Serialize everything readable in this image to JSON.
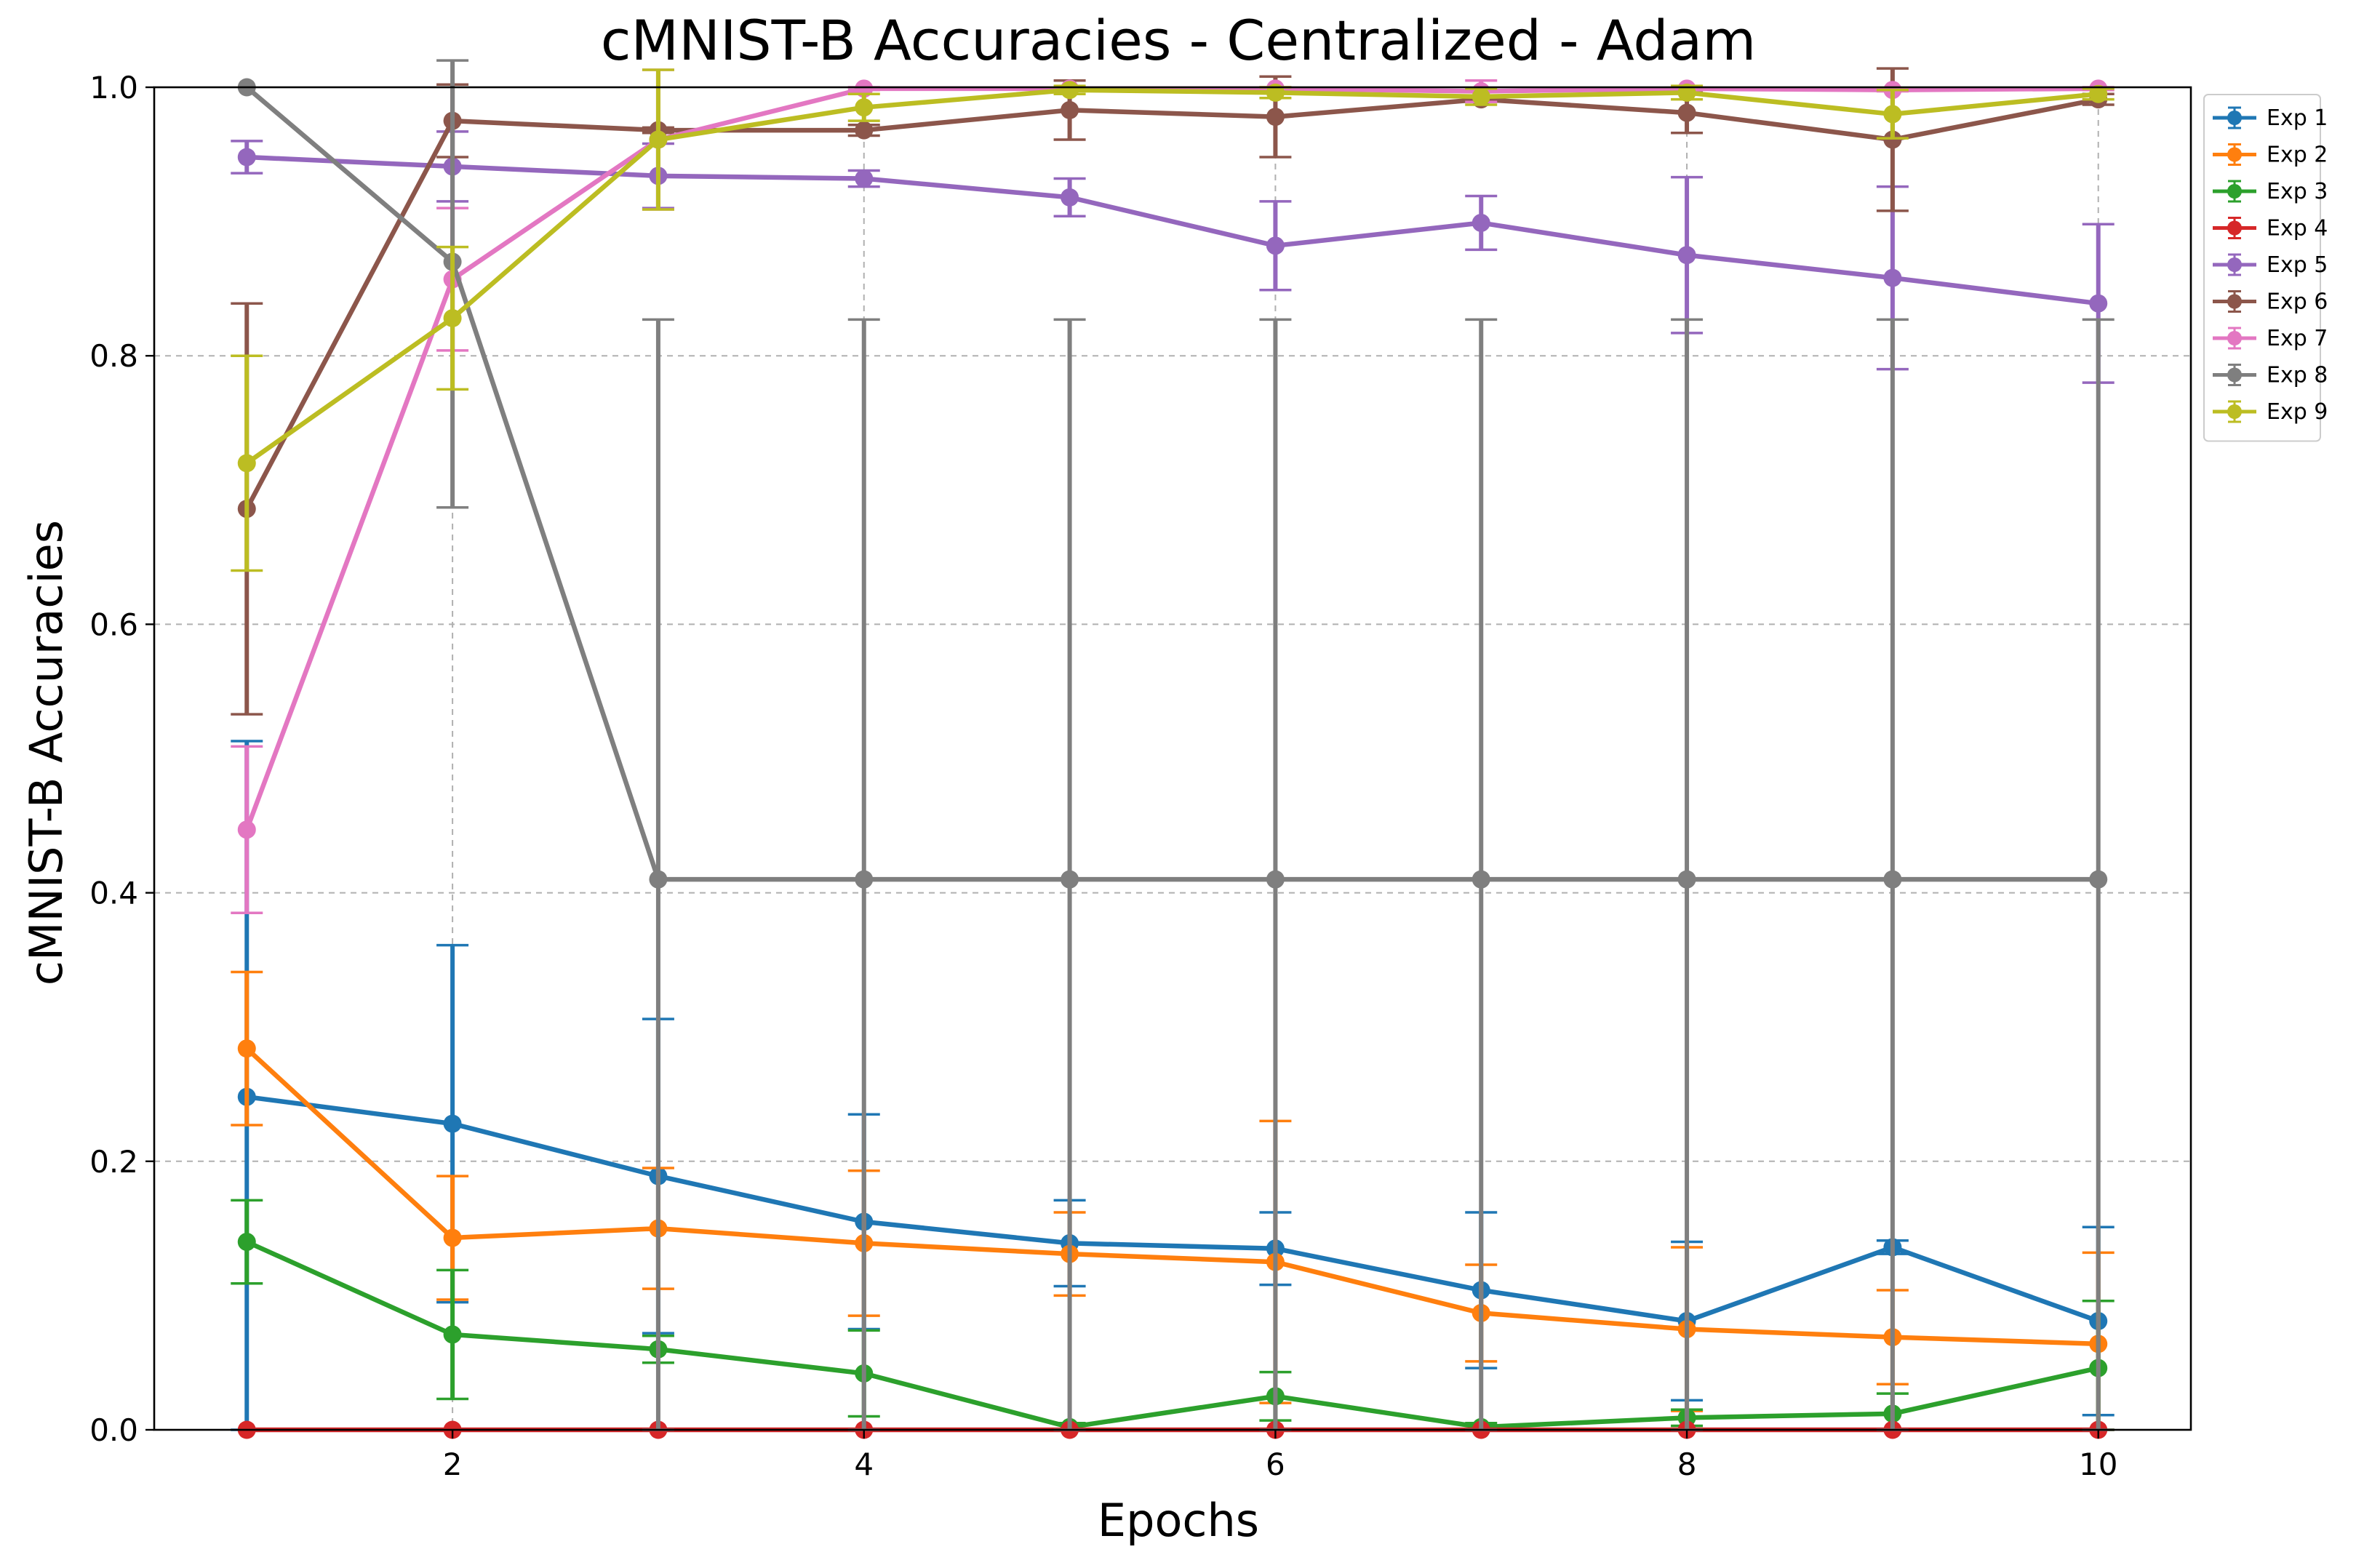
{
  "chart_data": {
    "type": "line",
    "title": "cMNIST-B Accuracies - Centralized - Adam",
    "xlabel": "Epochs",
    "ylabel": "cMNIST-B Accuracies",
    "xlim": [
      0.55,
      10.45
    ],
    "ylim": [
      0.0,
      1.0
    ],
    "xticks": [
      2,
      4,
      6,
      8,
      10
    ],
    "yticks": [
      0.0,
      0.2,
      0.4,
      0.6,
      0.8,
      1.0
    ],
    "xtick_labels": [
      "2",
      "4",
      "6",
      "8",
      "10"
    ],
    "ytick_labels": [
      "0.0",
      "0.2",
      "0.4",
      "0.6",
      "0.8",
      "1.0"
    ],
    "grid": true,
    "grid_style": "dashed",
    "legend_position": "outside-top-right",
    "x": [
      1,
      2,
      3,
      4,
      5,
      6,
      7,
      8,
      9,
      10
    ],
    "series": [
      {
        "name": "Exp 1",
        "color": "#1f77b4",
        "values": [
          0.248,
          0.228,
          0.189,
          0.155,
          0.139,
          0.135,
          0.104,
          0.081,
          0.136,
          0.081
        ],
        "err": [
          0.265,
          0.133,
          0.117,
          0.08,
          0.032,
          0.027,
          0.058,
          0.059,
          0.005,
          0.07
        ]
      },
      {
        "name": "Exp 2",
        "color": "#ff7f0e",
        "values": [
          0.284,
          0.143,
          0.15,
          0.139,
          0.131,
          0.125,
          0.087,
          0.075,
          0.069,
          0.064
        ],
        "err": [
          0.057,
          0.046,
          0.045,
          0.054,
          0.031,
          0.105,
          0.036,
          0.061,
          0.035,
          0.068
        ]
      },
      {
        "name": "Exp 3",
        "color": "#2ca02c",
        "values": [
          0.14,
          0.071,
          0.06,
          0.042,
          0.002,
          0.025,
          0.002,
          0.009,
          0.012,
          0.046
        ],
        "err": [
          0.031,
          0.048,
          0.01,
          0.032,
          0.003,
          0.018,
          0.003,
          0.006,
          0.015,
          0.05
        ]
      },
      {
        "name": "Exp 4",
        "color": "#d62728",
        "values": [
          0.0,
          0.0,
          0.0,
          0.0,
          0.0,
          0.0,
          0.0,
          0.0,
          0.0,
          0.0
        ],
        "err": [
          0.0,
          0.0,
          0.0,
          0.0,
          0.0,
          0.0,
          0.0,
          0.0,
          0.0,
          0.0
        ]
      },
      {
        "name": "Exp 5",
        "color": "#9467bd",
        "values": [
          0.948,
          0.941,
          0.934,
          0.932,
          0.918,
          0.882,
          0.899,
          0.875,
          0.858,
          0.839
        ],
        "err": [
          0.012,
          0.026,
          0.024,
          0.006,
          0.014,
          0.033,
          0.02,
          0.058,
          0.068,
          0.059
        ]
      },
      {
        "name": "Exp 6",
        "color": "#8c564b",
        "values": [
          0.686,
          0.975,
          0.968,
          0.968,
          0.983,
          0.978,
          0.991,
          0.981,
          0.961,
          0.991
        ],
        "err": [
          0.153,
          0.027,
          0.002,
          0.004,
          0.022,
          0.03,
          0.001,
          0.015,
          0.053,
          0.004
        ]
      },
      {
        "name": "Exp 7",
        "color": "#e377c2",
        "values": [
          0.447,
          0.857,
          0.961,
          0.999,
          0.999,
          0.999,
          0.997,
          0.999,
          0.998,
          0.999
        ],
        "err": [
          0.062,
          0.053,
          0.052,
          0.001,
          0.001,
          0.001,
          0.008,
          0.001,
          0.001,
          0.001
        ]
      },
      {
        "name": "Exp 8",
        "color": "#7f7f7f",
        "values": [
          1.0,
          0.87,
          0.41,
          0.41,
          0.41,
          0.41,
          0.41,
          0.41,
          0.41,
          0.41
        ],
        "err": [
          0.0,
          0.183,
          0.417,
          0.417,
          0.417,
          0.417,
          0.417,
          0.417,
          0.417,
          0.417
        ]
      },
      {
        "name": "Exp 9",
        "color": "#bcbd22",
        "values": [
          0.72,
          0.828,
          0.961,
          0.985,
          0.998,
          0.996,
          0.993,
          0.996,
          0.98,
          0.995
        ],
        "err": [
          0.08,
          0.053,
          0.052,
          0.01,
          0.003,
          0.004,
          0.006,
          0.005,
          0.018,
          0.004
        ]
      }
    ]
  }
}
